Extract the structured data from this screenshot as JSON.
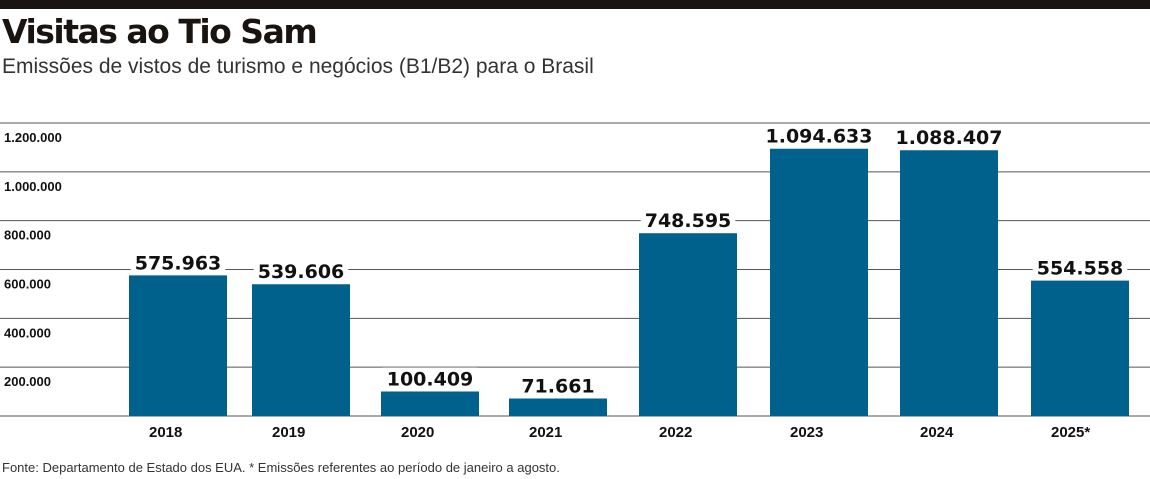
{
  "header": {
    "title": "Visitas ao Tio Sam",
    "subtitle": "Emissões de vistos de turismo e negócios (B1/B2) para o Brasil"
  },
  "footer": {
    "source": "Fonte: Departamento de Estado dos EUA. * Emissões referentes ao período de janeiro a agosto."
  },
  "colors": {
    "bar": "#00628c",
    "text": "#111111",
    "rule": "#1a1410",
    "grid": "#555555"
  },
  "chart_data": {
    "type": "bar",
    "title": "Visitas ao Tio Sam",
    "subtitle": "Emissões de vistos de turismo e negócios (B1/B2) para o Brasil",
    "xlabel": "",
    "ylabel": "",
    "categories": [
      "2018",
      "2019",
      "2020",
      "2021",
      "2022",
      "2023",
      "2024",
      "2025*"
    ],
    "values": [
      575963,
      539606,
      100409,
      71661,
      748595,
      1094633,
      1088407,
      554558
    ],
    "data_labels": [
      "575.963",
      "539.606",
      "100.409",
      "71.661",
      "748.595",
      "1.094.633",
      "1.088.407",
      "554.558"
    ],
    "y_ticks": [
      200000,
      400000,
      600000,
      800000,
      1000000,
      1200000
    ],
    "y_tick_labels": [
      "200.000",
      "400.000",
      "600.000",
      "800.000",
      "1.000.000",
      "1.200.000"
    ],
    "ylim": [
      0,
      1200000
    ],
    "grid": true,
    "legend": "none"
  }
}
